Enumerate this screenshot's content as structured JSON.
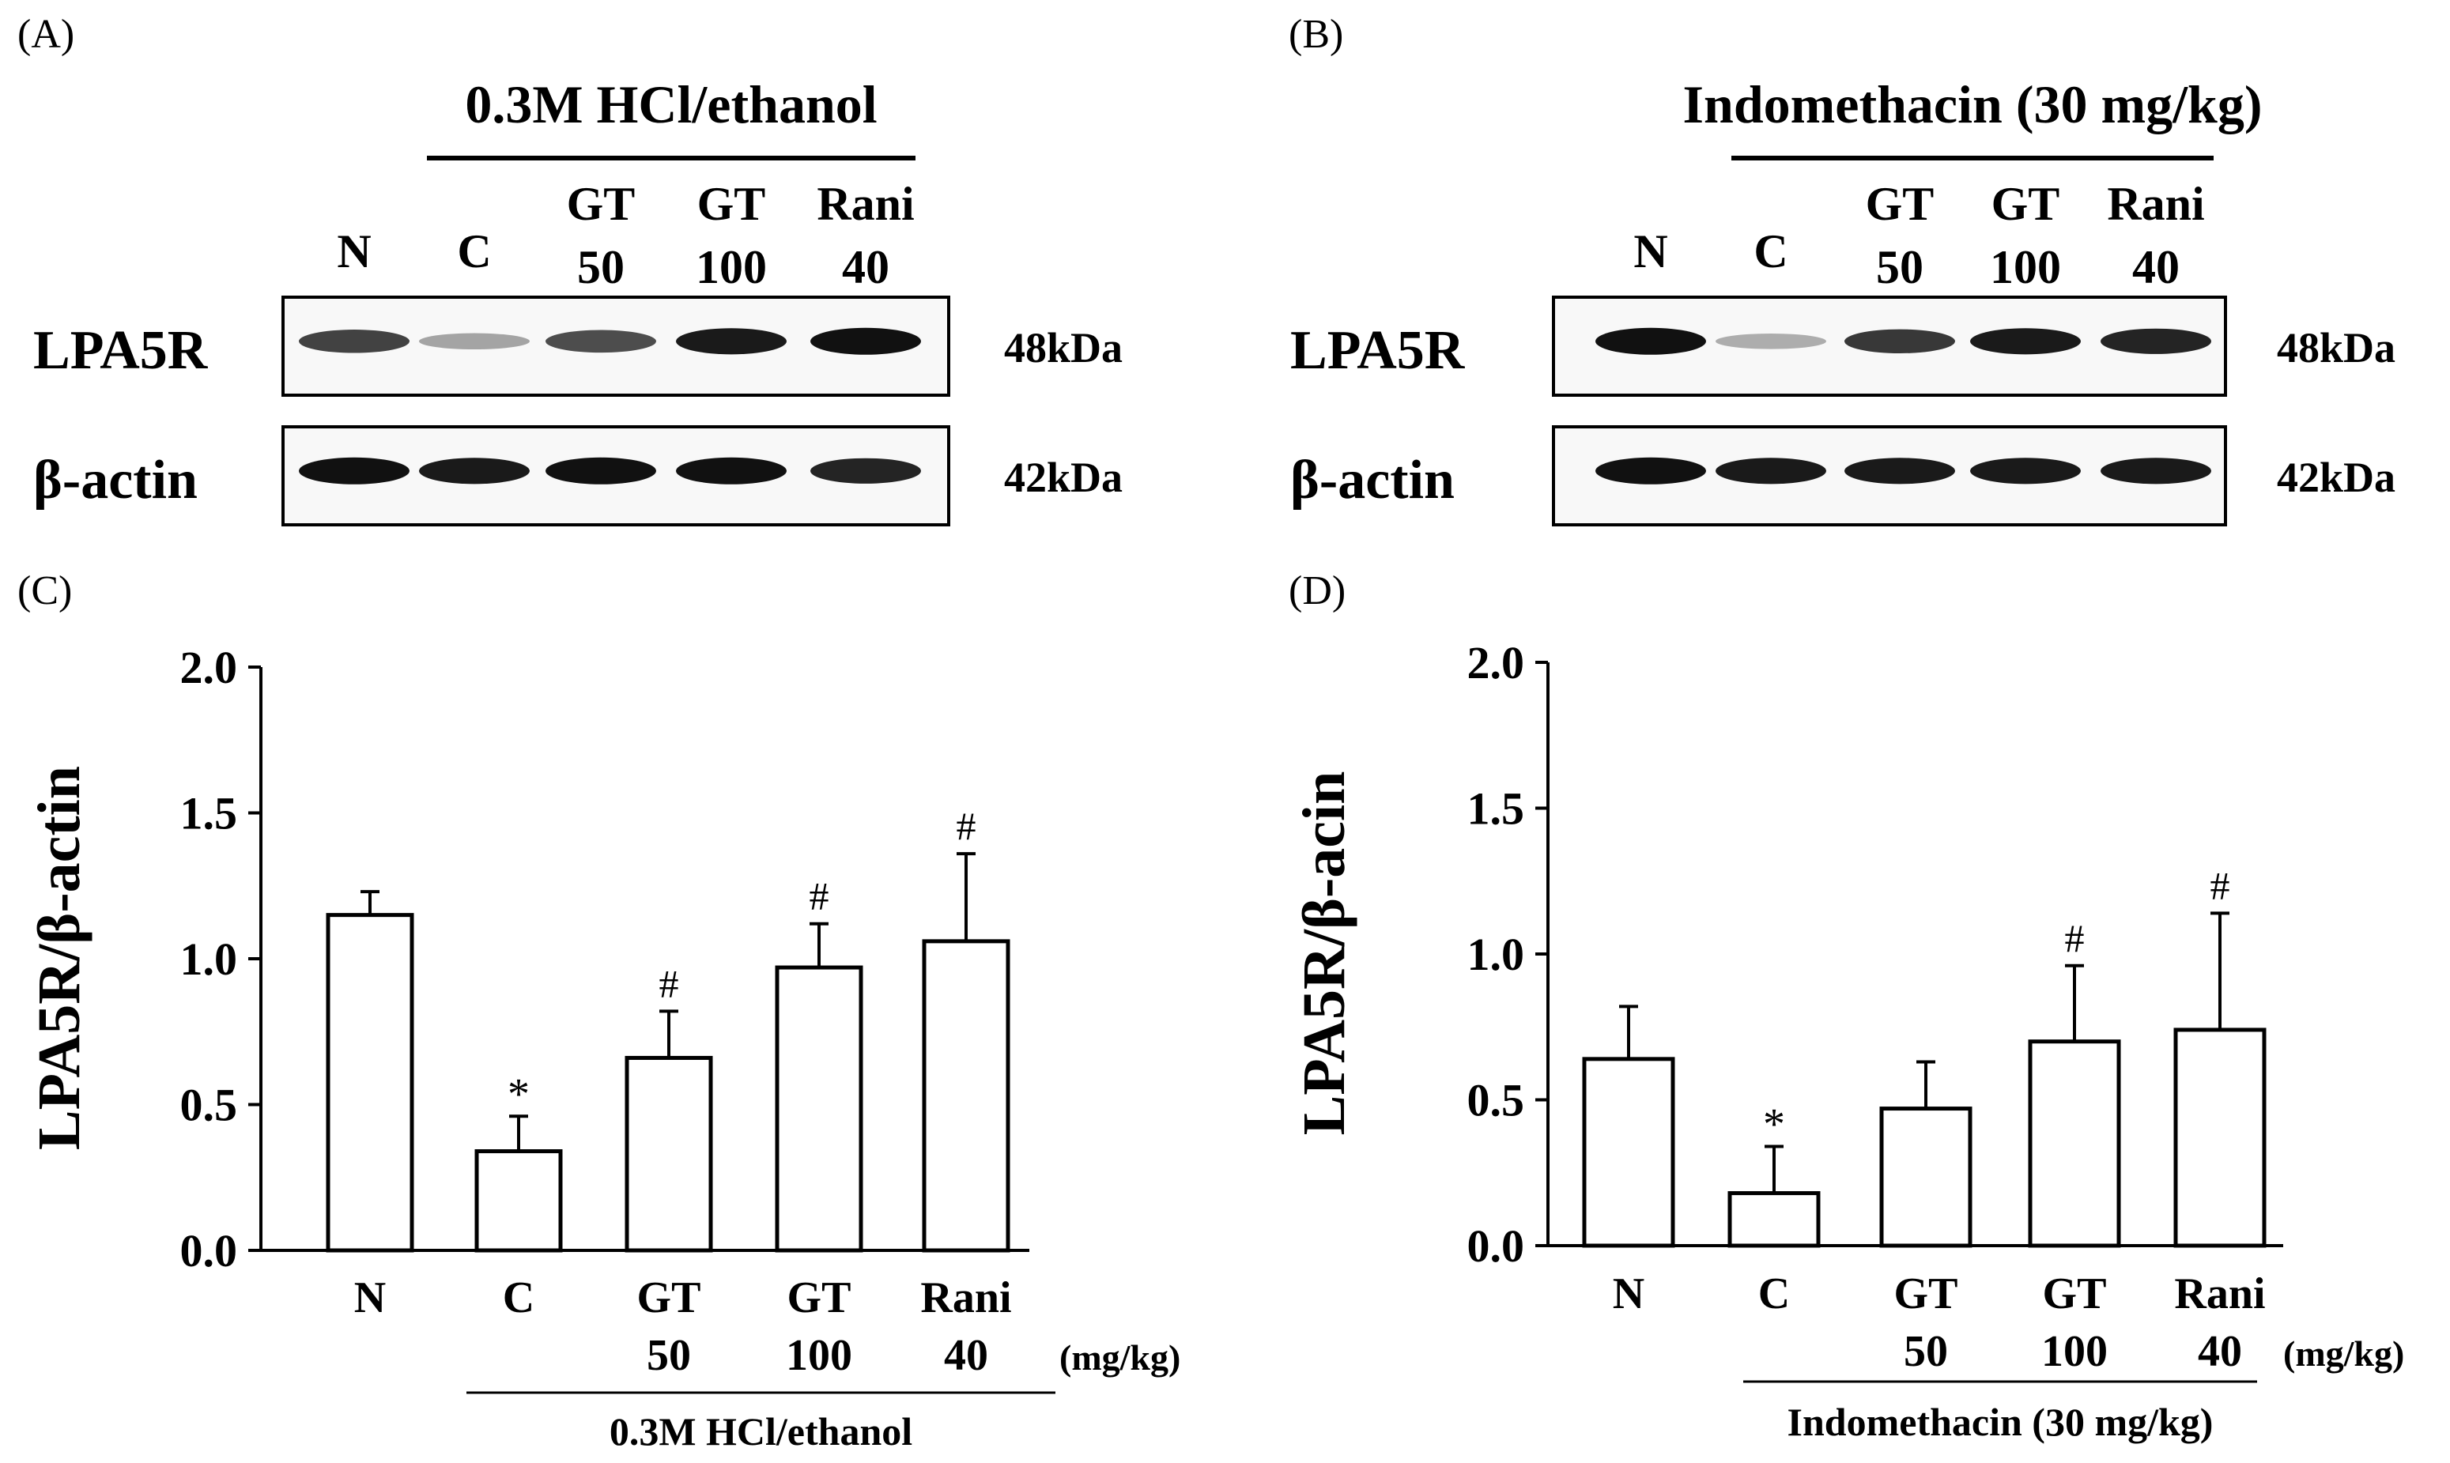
{
  "blots": [
    {
      "panel": "(A)",
      "treatment": "0.3M HCl/ethanol",
      "lanes": [
        {
          "top": "N",
          "bottom": ""
        },
        {
          "top": "C",
          "bottom": ""
        },
        {
          "top": "GT",
          "bottom": "50"
        },
        {
          "top": "GT",
          "bottom": "100"
        },
        {
          "top": "Rani",
          "bottom": "40"
        }
      ],
      "rows": [
        {
          "protein": "LPA5R",
          "kda": "48kDa",
          "band_intensity": [
            0.75,
            0.25,
            0.7,
            0.95,
            1.0
          ]
        },
        {
          "protein": "β-actin",
          "kda": "42kDa",
          "band_intensity": [
            1.0,
            0.95,
            1.0,
            1.0,
            0.9
          ]
        }
      ]
    },
    {
      "panel": "(B)",
      "treatment": "Indomethacin (30 mg/kg)",
      "lanes": [
        {
          "top": "N",
          "bottom": ""
        },
        {
          "top": "C",
          "bottom": ""
        },
        {
          "top": "GT",
          "bottom": "50"
        },
        {
          "top": "GT",
          "bottom": "100"
        },
        {
          "top": "Rani",
          "bottom": "40"
        }
      ],
      "rows": [
        {
          "protein": "LPA5R",
          "kda": "48kDa",
          "band_intensity": [
            1.0,
            0.2,
            0.8,
            0.95,
            0.9
          ]
        },
        {
          "protein": "β-actin",
          "kda": "42kDa",
          "band_intensity": [
            1.0,
            0.95,
            0.95,
            0.95,
            0.95
          ]
        }
      ]
    }
  ],
  "chart_data": [
    {
      "panel": "(C)",
      "type": "bar",
      "ylabel": "LPA5R/β-actin",
      "ylim": [
        0,
        2.0
      ],
      "yticks": [
        "0.0",
        "0.5",
        "1.0",
        "1.5",
        "2.0"
      ],
      "categories": [
        {
          "top": "N",
          "bottom": ""
        },
        {
          "top": "C",
          "bottom": ""
        },
        {
          "top": "GT",
          "bottom": "50"
        },
        {
          "top": "GT",
          "bottom": "100"
        },
        {
          "top": "Rani",
          "bottom": "40"
        }
      ],
      "values": [
        1.15,
        0.34,
        0.66,
        0.97,
        1.06
      ],
      "errors": [
        0.08,
        0.12,
        0.16,
        0.15,
        0.3
      ],
      "significance": [
        "",
        "*",
        "#",
        "#",
        "#"
      ],
      "unit": "(mg/kg)",
      "treatment": "0.3M HCl/ethanol"
    },
    {
      "panel": "(D)",
      "type": "bar",
      "ylabel": "LPA5R/β-acin",
      "ylim": [
        0,
        2.0
      ],
      "yticks": [
        "0.0",
        "0.5",
        "1.0",
        "1.5",
        "2.0"
      ],
      "categories": [
        {
          "top": "N",
          "bottom": ""
        },
        {
          "top": "C",
          "bottom": ""
        },
        {
          "top": "GT",
          "bottom": "50"
        },
        {
          "top": "GT",
          "bottom": "100"
        },
        {
          "top": "Rani",
          "bottom": "40"
        }
      ],
      "values": [
        0.64,
        0.18,
        0.47,
        0.7,
        0.74
      ],
      "errors": [
        0.18,
        0.16,
        0.16,
        0.26,
        0.4
      ],
      "significance": [
        "",
        "*",
        "",
        "#",
        "#"
      ],
      "unit": "(mg/kg)",
      "treatment": "Indomethacin (30 mg/kg)"
    }
  ]
}
